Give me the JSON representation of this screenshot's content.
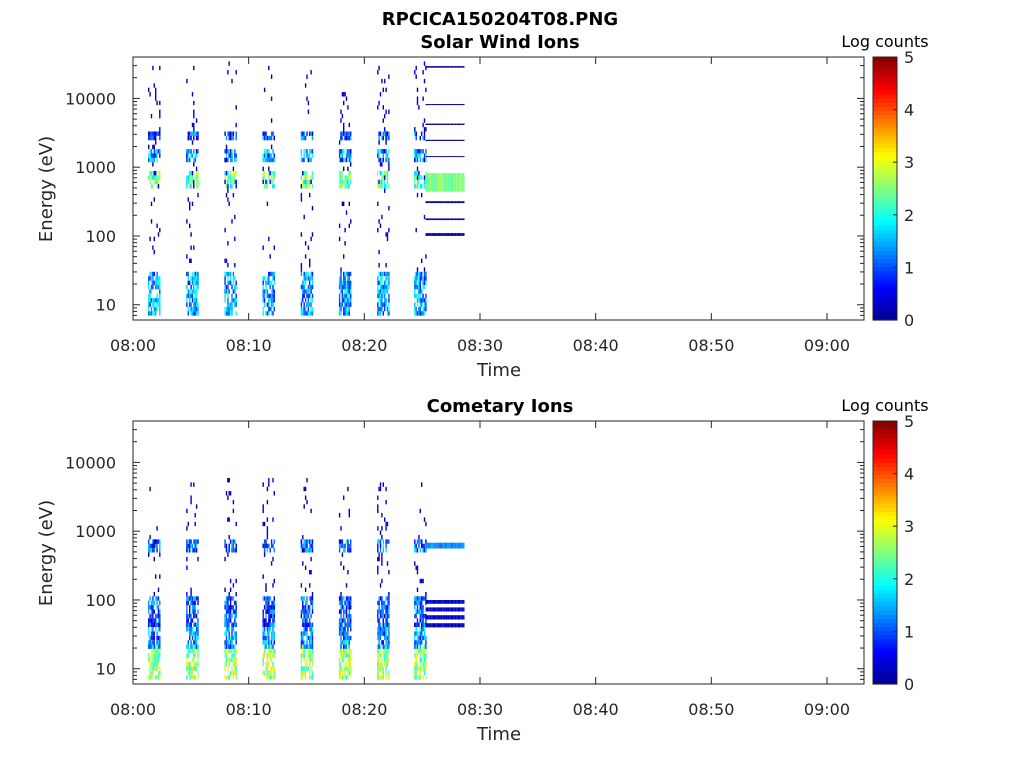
{
  "figure_title": "RPCICA150204T08.PNG",
  "colormap": [
    "#00008f",
    "#0000ff",
    "#0080ff",
    "#00ffff",
    "#80ff80",
    "#ffff00",
    "#ff8000",
    "#ff0000",
    "#800000"
  ],
  "chart_data": [
    {
      "type": "heatmap",
      "title": "Solar Wind Ions",
      "xlabel": "Time",
      "ylabel": "Energy (eV)",
      "x_tick_labels": [
        "08:00",
        "08:10",
        "08:20",
        "08:30",
        "08:40",
        "08:50",
        "09:00"
      ],
      "x_ticks_min": [
        0,
        10,
        20,
        30,
        40,
        50,
        60
      ],
      "xlim_min": [
        0,
        63.2
      ],
      "y_scale": "log",
      "y_tick_labels": [
        "10",
        "100",
        "1000",
        "10000"
      ],
      "y_ticks": [
        10,
        100,
        1000,
        10000
      ],
      "ylim": [
        6,
        40000
      ],
      "colorbar": {
        "label": "Log counts",
        "range": [
          0,
          5
        ],
        "tick_labels": [
          "0",
          "1",
          "2",
          "3",
          "4",
          "5"
        ],
        "ticks": [
          0,
          1,
          2,
          3,
          4,
          5
        ]
      },
      "pattern": {
        "sweep_starts_min": [
          1.3,
          4.6,
          7.9,
          11.2,
          14.5,
          17.8,
          21.1,
          24.3
        ],
        "sweep_duration_min": 1.0,
        "continuous_start_min": 25.3,
        "continuous_end_min": 28.6,
        "bands": [
          {
            "e_min": 7,
            "e_max": 28,
            "level": 1.4
          },
          {
            "e_min": 500,
            "e_max": 800,
            "level": 2.3
          },
          {
            "e_min": 1300,
            "e_max": 1600,
            "level": 1.4
          },
          {
            "e_min": 2600,
            "e_max": 3300,
            "level": 1.0
          }
        ],
        "continuous_bands": [
          {
            "e_min": 440,
            "e_max": 820,
            "level": 2.5
          },
          {
            "e_min": 100,
            "e_max": 110,
            "level": 0.0
          },
          {
            "e_min": 170,
            "e_max": 180,
            "level": 0.0
          },
          {
            "e_min": 300,
            "e_max": 320,
            "level": 0.0
          },
          {
            "e_min": 1400,
            "e_max": 1450,
            "level": 0.0
          },
          {
            "e_min": 2400,
            "e_max": 2500,
            "level": 0.0
          },
          {
            "e_min": 4100,
            "e_max": 4300,
            "level": 0.0
          },
          {
            "e_min": 8000,
            "e_max": 8300,
            "level": 0.0
          },
          {
            "e_min": 28000,
            "e_max": 29500,
            "level": 0.0
          }
        ],
        "sparse_e_range": [
          30,
          38000
        ]
      }
    },
    {
      "type": "heatmap",
      "title": "Cometary Ions",
      "xlabel": "Time",
      "ylabel": "Energy (eV)",
      "x_tick_labels": [
        "08:00",
        "08:10",
        "08:20",
        "08:30",
        "08:40",
        "08:50",
        "09:00"
      ],
      "x_ticks_min": [
        0,
        10,
        20,
        30,
        40,
        50,
        60
      ],
      "xlim_min": [
        0,
        63.2
      ],
      "y_scale": "log",
      "y_tick_labels": [
        "10",
        "100",
        "1000",
        "10000"
      ],
      "y_ticks": [
        10,
        100,
        1000,
        10000
      ],
      "ylim": [
        6,
        40000
      ],
      "colorbar": {
        "label": "Log counts",
        "range": [
          0,
          5
        ],
        "tick_labels": [
          "0",
          "1",
          "2",
          "3",
          "4",
          "5"
        ],
        "ticks": [
          0,
          1,
          2,
          3,
          4,
          5
        ]
      },
      "pattern": {
        "sweep_starts_min": [
          1.3,
          4.6,
          7.9,
          11.2,
          14.5,
          17.8,
          21.1,
          24.3
        ],
        "sweep_duration_min": 1.0,
        "continuous_start_min": 25.3,
        "continuous_end_min": 28.6,
        "bands": [
          {
            "e_min": 7,
            "e_max": 22,
            "level": 2.6
          },
          {
            "e_min": 22,
            "e_max": 45,
            "level": 1.3
          },
          {
            "e_min": 45,
            "e_max": 110,
            "level": 1.0
          },
          {
            "e_min": 550,
            "e_max": 720,
            "level": 1.2
          }
        ],
        "continuous_bands": [
          {
            "e_min": 560,
            "e_max": 680,
            "level": 1.3
          },
          {
            "e_min": 88,
            "e_max": 100,
            "level": 0.3
          },
          {
            "e_min": 68,
            "e_max": 78,
            "level": 0.3
          },
          {
            "e_min": 52,
            "e_max": 60,
            "level": 0.3
          },
          {
            "e_min": 40,
            "e_max": 46,
            "level": 0.3
          }
        ],
        "sparse_e_range": [
          110,
          6000
        ]
      }
    }
  ]
}
